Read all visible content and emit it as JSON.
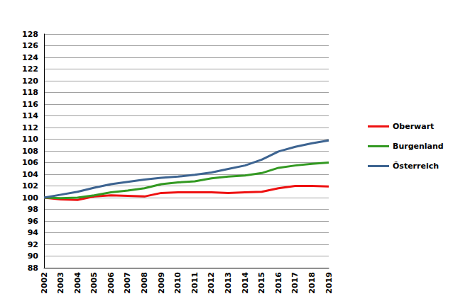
{
  "chart_data": {
    "type": "line",
    "categories": [
      "2002",
      "2003",
      "2004",
      "2005",
      "2006",
      "2007",
      "2008",
      "2009",
      "2010",
      "2011",
      "2012",
      "2013",
      "2014",
      "2015",
      "2016",
      "2017",
      "2018",
      "2019"
    ],
    "series": [
      {
        "name": "Oberwart",
        "color": "#ee1111",
        "values": [
          100,
          99.7,
          99.6,
          100.2,
          100.4,
          100.3,
          100.2,
          100.8,
          100.9,
          100.9,
          100.9,
          100.8,
          100.9,
          101.0,
          101.6,
          102.0,
          102.0,
          101.9
        ]
      },
      {
        "name": "Burgenland",
        "color": "#339922",
        "values": [
          100,
          99.9,
          100.0,
          100.4,
          100.9,
          101.2,
          101.6,
          102.3,
          102.6,
          102.8,
          103.3,
          103.6,
          103.8,
          104.2,
          105.1,
          105.5,
          105.8,
          106.0
        ]
      },
      {
        "name": "Österreich",
        "color": "#3d6491",
        "values": [
          100,
          100.5,
          101.0,
          101.7,
          102.3,
          102.7,
          103.1,
          103.4,
          103.6,
          103.9,
          104.3,
          104.9,
          105.5,
          106.5,
          107.9,
          108.7,
          109.3,
          109.8
        ]
      }
    ],
    "ylim": [
      88,
      128
    ],
    "yticks": [
      88,
      90,
      92,
      94,
      96,
      98,
      100,
      102,
      104,
      106,
      108,
      110,
      112,
      114,
      116,
      118,
      120,
      122,
      124,
      126,
      128
    ],
    "grid": true,
    "legend": "right"
  }
}
